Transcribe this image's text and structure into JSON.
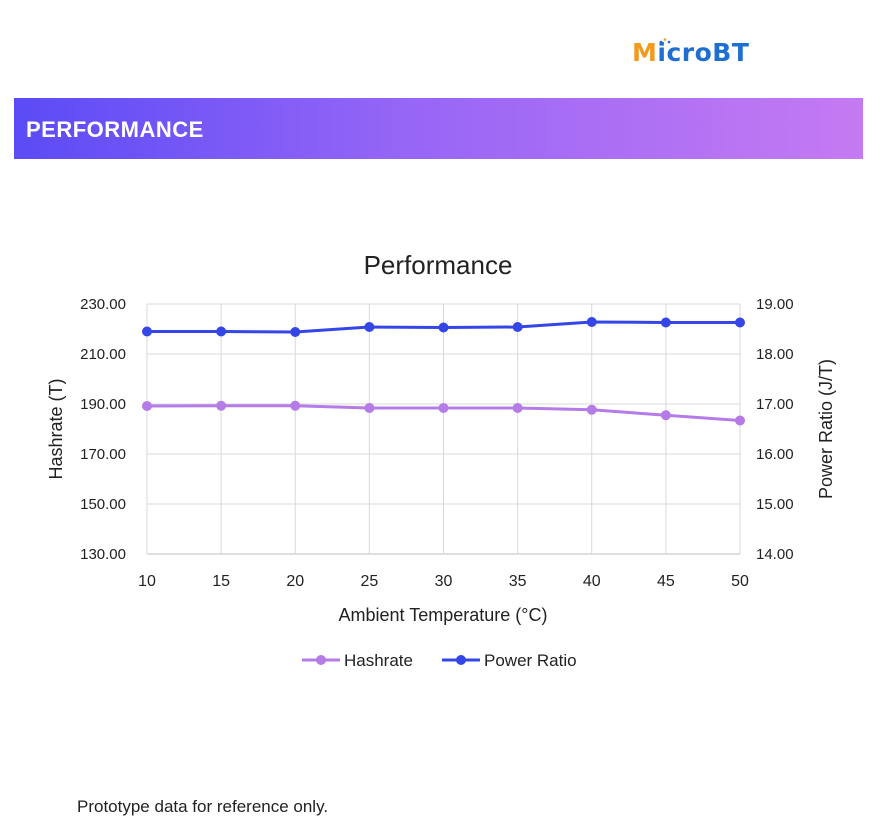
{
  "brand": {
    "logo_first": "M",
    "logo_rest": "icroBT",
    "logo_full": "MicroBT",
    "primary_color": "#1f6fd1",
    "accent_color": "#f39a1e"
  },
  "banner": {
    "title": "PERFORMANCE",
    "gradient": [
      "#5b4bf6",
      "#c57af2"
    ]
  },
  "chart_data": {
    "type": "line",
    "title": "Performance",
    "xlabel": "Ambient Temperature (°C)",
    "ylabel": "Hashrate (T)",
    "y2label": "Power Ratio (J/T)",
    "x": [
      10,
      15,
      20,
      25,
      30,
      35,
      40,
      45,
      50
    ],
    "x_ticks": [
      "10",
      "15",
      "20",
      "25",
      "30",
      "35",
      "40",
      "45",
      "50"
    ],
    "ylim": [
      130,
      230
    ],
    "y_ticks": [
      "130.00",
      "150.00",
      "170.00",
      "190.00",
      "210.00",
      "230.00"
    ],
    "y_tick_values": [
      130,
      150,
      170,
      190,
      210,
      230
    ],
    "y2lim": [
      14,
      19
    ],
    "y2_ticks": [
      "14.00",
      "15.00",
      "16.00",
      "17.00",
      "18.00",
      "19.00"
    ],
    "y2_tick_values": [
      14,
      15,
      16,
      17,
      18,
      19
    ],
    "grid": true,
    "legend_position": "bottom",
    "series": [
      {
        "name": "Hashrate",
        "axis": "left",
        "color": "#b57be6",
        "values": [
          189.2,
          189.3,
          189.3,
          188.4,
          188.4,
          188.4,
          187.7,
          185.5,
          183.4
        ]
      },
      {
        "name": "Power Ratio",
        "axis": "right",
        "color": "#3447e6",
        "values": [
          18.45,
          18.45,
          18.44,
          18.54,
          18.53,
          18.54,
          18.64,
          18.63,
          18.63
        ]
      }
    ]
  },
  "footnote": "Prototype data for reference only."
}
